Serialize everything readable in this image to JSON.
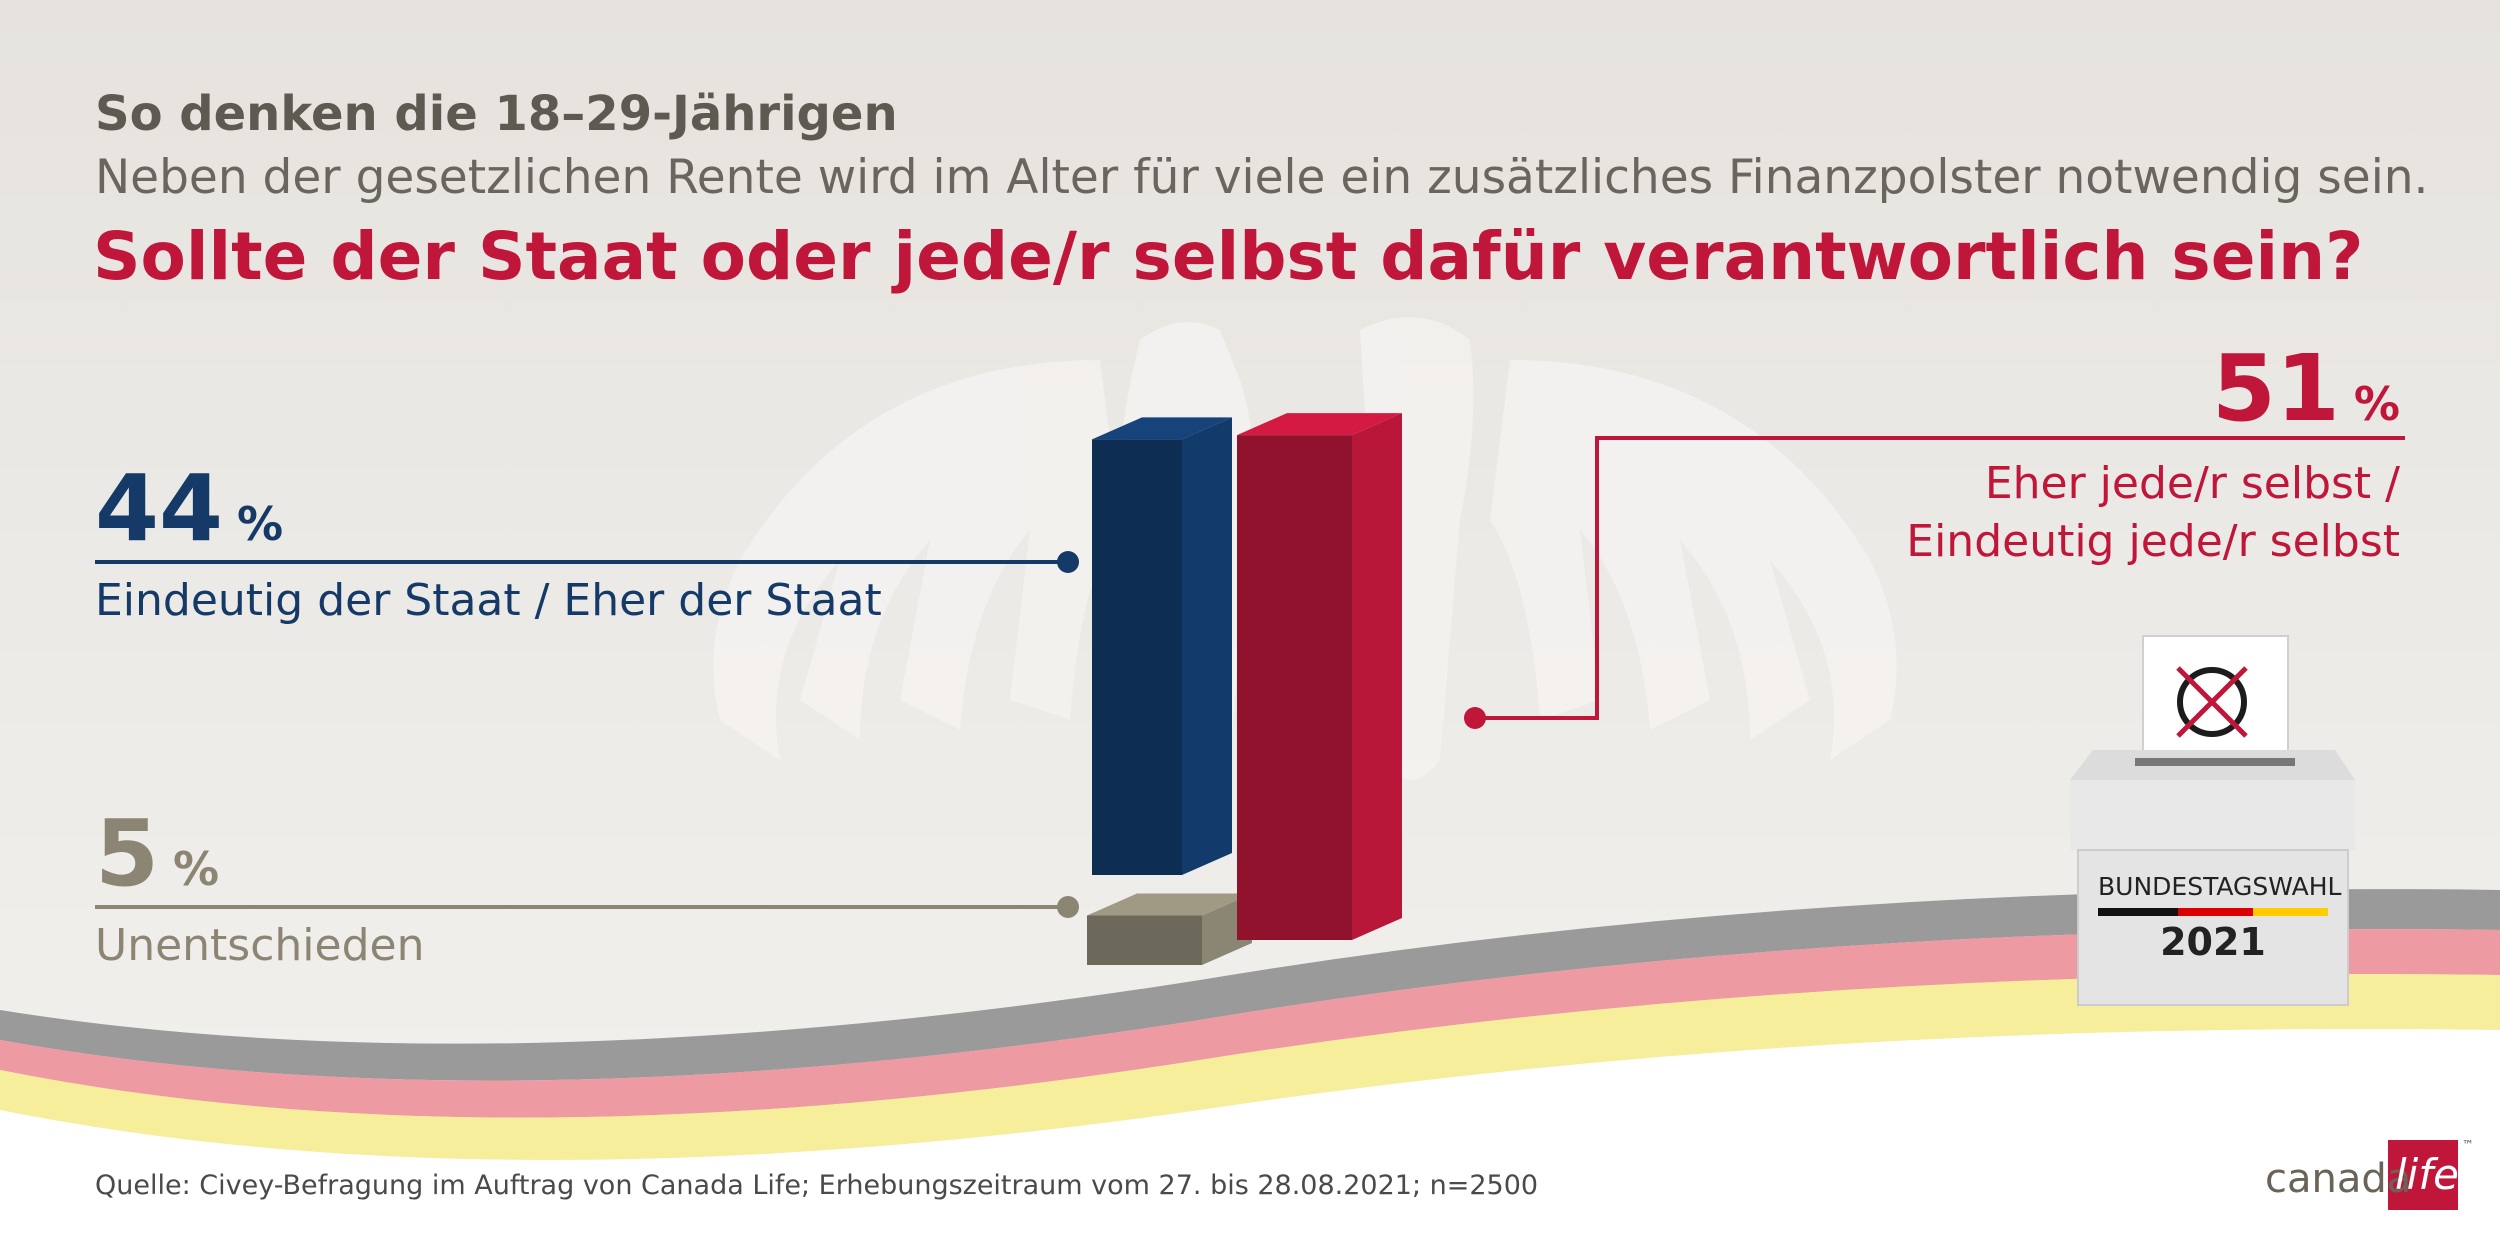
{
  "header": {
    "supertitle": "So denken die 18–29-Jährigen",
    "subtitle": "Neben der gesetzlichen Rente wird im Alter für viele ein zusätzliches Finanzpolster notwendig sein.",
    "question": "Sollte der Staat oder jede/r selbst dafür verantwortlich sein?"
  },
  "chart_data": {
    "type": "bar",
    "unit": "%",
    "categories": [
      "Eindeutig der Staat / Eher der Staat",
      "Eher jede/r selbst / Eindeutig jede/r selbst",
      "Unentschieden"
    ],
    "values": [
      44,
      51,
      5
    ],
    "colors": [
      "#123a6a",
      "#b8173a",
      "#8b8674"
    ],
    "labels": {
      "staat": {
        "value": "44",
        "unit": "%",
        "text": "Eindeutig der Staat / Eher der Staat"
      },
      "selbst": {
        "value": "51",
        "unit": "%",
        "line1": "Eher jede/r selbst /",
        "line2": "Eindeutig jede/r selbst"
      },
      "unent": {
        "value": "5",
        "unit": "%",
        "text": "Unentschieden"
      }
    }
  },
  "ballot": {
    "label": "BUNDESTAGSWAHL",
    "year": "2021"
  },
  "source": "Quelle: Civey-Befragung im Auftrag von Canada Life; Erhebungszeitraum vom 27. bis 28.08.2021; n=2500",
  "brand": {
    "word1": "canada",
    "word2": "life",
    "tm": "™",
    "logo_color": "#c0163a"
  },
  "colors": {
    "accent_red": "#c0163a",
    "accent_blue": "#153a68",
    "neutral": "#8c8573"
  }
}
